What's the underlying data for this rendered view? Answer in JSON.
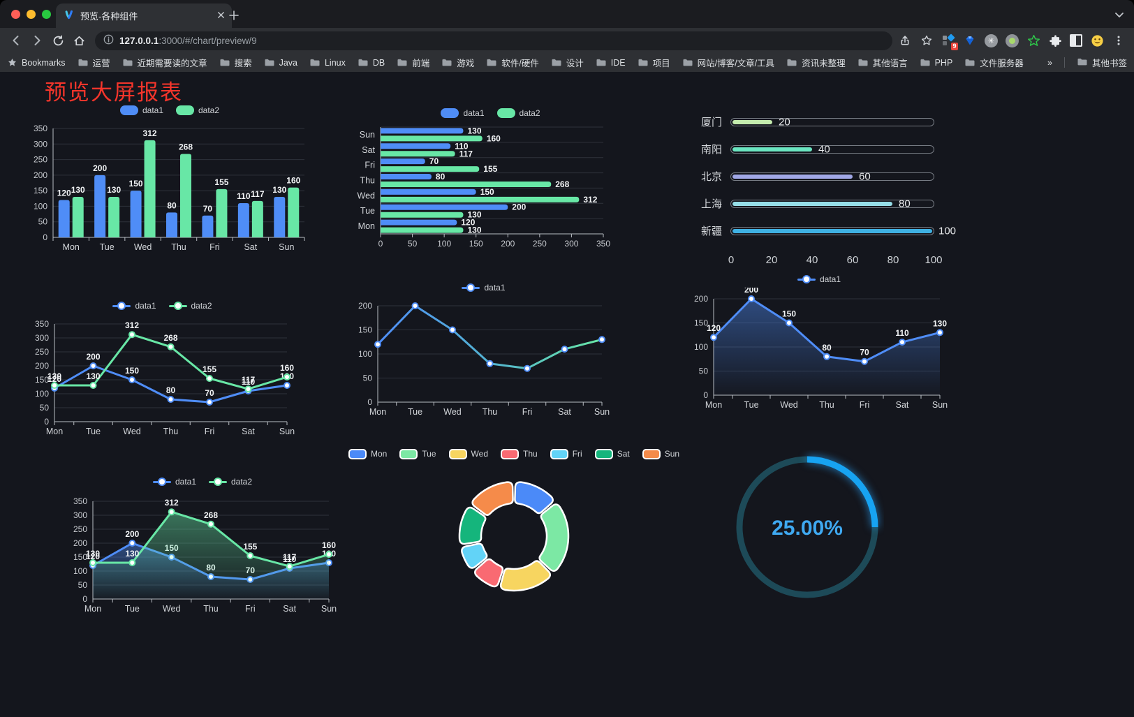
{
  "browser": {
    "traffic_lights": [
      "#ff5f57",
      "#febc2e",
      "#28c840"
    ],
    "tab": {
      "title": "预览-各种组件"
    },
    "url": {
      "host": "127.0.0.1",
      "rest": ":3000/#/chart/preview/9"
    },
    "extension_badge": "9",
    "bookmarks_bar": {
      "first": "Bookmarks",
      "folders": [
        "运营",
        "近期需要读的文章",
        "搜索",
        "Java",
        "Linux",
        "DB",
        "前端",
        "游戏",
        "软件/硬件",
        "设计",
        "IDE",
        "项目",
        "网站/博客/文章/工具",
        "资讯未整理",
        "其他语言",
        "PHP",
        "文件服务器"
      ],
      "overflow": "»",
      "other": "其他书签"
    }
  },
  "page": {
    "title": "预览大屏报表",
    "title_color": "#f5352b",
    "background": "#14161d"
  },
  "chart_data": [
    {
      "type": "bar",
      "categories": [
        "Mon",
        "Tue",
        "Wed",
        "Thu",
        "Fri",
        "Sat",
        "Sun"
      ],
      "series": [
        {
          "name": "data1",
          "color": "#4f8df7",
          "values": [
            120,
            200,
            150,
            80,
            70,
            110,
            130
          ]
        },
        {
          "name": "data2",
          "color": "#68e7a6",
          "values": [
            130,
            130,
            312,
            268,
            155,
            117,
            160
          ]
        }
      ],
      "ylim": [
        0,
        350
      ],
      "ytick": 50,
      "legend_position": "top",
      "grid": true,
      "value_labels": true
    },
    {
      "type": "bar-horizontal",
      "categories": [
        "Mon",
        "Tue",
        "Wed",
        "Thu",
        "Fri",
        "Sat",
        "Sun"
      ],
      "series": [
        {
          "name": "data1",
          "color": "#4f8df7",
          "values": [
            120,
            200,
            150,
            80,
            70,
            110,
            130
          ]
        },
        {
          "name": "data2",
          "color": "#68e7a6",
          "values": [
            130,
            130,
            312,
            268,
            155,
            117,
            160
          ]
        }
      ],
      "xlim": [
        0,
        350
      ],
      "xtick": 50,
      "legend_position": "top",
      "value_labels": true
    },
    {
      "type": "progress-bars",
      "categories": [
        "厦门",
        "南阳",
        "北京",
        "上海",
        "新疆"
      ],
      "values": [
        20,
        40,
        60,
        80,
        100
      ],
      "colors": [
        "#c4ebad",
        "#6be6c1",
        "#a0a7e6",
        "#96dee8",
        "#3fb1e3"
      ],
      "xlim": [
        0,
        100
      ],
      "xticks": [
        0,
        20,
        40,
        60,
        80,
        100
      ],
      "value_labels": true
    },
    {
      "type": "line",
      "categories": [
        "Mon",
        "Tue",
        "Wed",
        "Thu",
        "Fri",
        "Sat",
        "Sun"
      ],
      "series": [
        {
          "name": "data1",
          "color": "#4f8df7",
          "values": [
            120,
            200,
            150,
            80,
            70,
            110,
            130
          ]
        },
        {
          "name": "data2",
          "color": "#68e7a6",
          "values": [
            130,
            130,
            312,
            268,
            155,
            117,
            160
          ]
        }
      ],
      "ylim": [
        0,
        350
      ],
      "ytick": 50,
      "value_labels": true,
      "legend_position": "top"
    },
    {
      "type": "line",
      "categories": [
        "Mon",
        "Tue",
        "Wed",
        "Thu",
        "Fri",
        "Sat",
        "Sun"
      ],
      "series": [
        {
          "name": "data1",
          "color": "#4f8df7",
          "color_gradient": [
            "#4f8df7",
            "#53b3d0",
            "#68e7a6"
          ],
          "values": [
            120,
            200,
            150,
            80,
            70,
            110,
            130
          ]
        }
      ],
      "ylim": [
        0,
        200
      ],
      "ytick": 50,
      "value_labels": false,
      "legend_position": "top"
    },
    {
      "type": "area",
      "categories": [
        "Mon",
        "Tue",
        "Wed",
        "Thu",
        "Fri",
        "Sat",
        "Sun"
      ],
      "series": [
        {
          "name": "data1",
          "color": "#4f8df7",
          "values": [
            120,
            200,
            150,
            80,
            70,
            110,
            130
          ],
          "area": true
        }
      ],
      "ylim": [
        0,
        200
      ],
      "ytick": 50,
      "value_labels": true,
      "legend_position": "top"
    },
    {
      "type": "area",
      "categories": [
        "Mon",
        "Tue",
        "Wed",
        "Thu",
        "Fri",
        "Sat",
        "Sun"
      ],
      "series": [
        {
          "name": "data1",
          "color": "#4f8df7",
          "values": [
            120,
            200,
            150,
            80,
            70,
            110,
            130
          ],
          "area": true
        },
        {
          "name": "data2",
          "color": "#68e7a6",
          "values": [
            130,
            130,
            312,
            268,
            155,
            117,
            160
          ],
          "area": true
        }
      ],
      "ylim": [
        0,
        350
      ],
      "ytick": 50,
      "value_labels": true,
      "legend_position": "top"
    },
    {
      "type": "pie",
      "donut": true,
      "categories": [
        "Mon",
        "Tue",
        "Wed",
        "Thu",
        "Fri",
        "Sat",
        "Sun"
      ],
      "values": [
        120,
        200,
        150,
        80,
        70,
        110,
        130
      ],
      "colors": [
        "#4b8af8",
        "#7ce8a4",
        "#f7d560",
        "#f96a72",
        "#62d3f7",
        "#15b57c",
        "#f58b4a"
      ],
      "legend_position": "top"
    },
    {
      "type": "gauge",
      "value": 25,
      "max": 100,
      "display": "25.00%",
      "color": "#17a3f2",
      "track_color": "#1d4a58",
      "text_color": "#3fa9f1"
    }
  ]
}
